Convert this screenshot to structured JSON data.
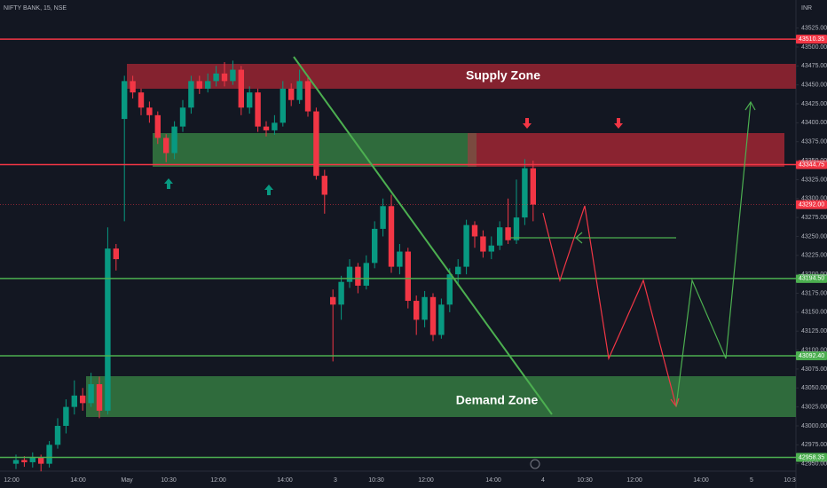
{
  "chart_data": {
    "type": "candlestick",
    "title": "NIFTY BANK, 15, NSE",
    "currency": "INR",
    "supply_zone_label": "Supply Zone",
    "demand_zone_label": "Demand Zone",
    "up_color": "#089981",
    "down_color": "#f23645",
    "ylim": [
      42918,
      43562
    ],
    "yticks": [
      {
        "value": 42950,
        "label": "42950.00"
      },
      {
        "value": 42975,
        "label": "42975.00"
      },
      {
        "value": 43000,
        "label": "43000.00"
      },
      {
        "value": 43025,
        "label": "43025.00"
      },
      {
        "value": 43050,
        "label": "43050.00"
      },
      {
        "value": 43075,
        "label": "43075.00"
      },
      {
        "value": 43100,
        "label": "43100.00"
      },
      {
        "value": 43125,
        "label": "43125.00"
      },
      {
        "value": 43150,
        "label": "43150.00"
      },
      {
        "value": 43175,
        "label": "43175.00"
      },
      {
        "value": 43200,
        "label": "43200.00"
      },
      {
        "value": 43225,
        "label": "43225.00"
      },
      {
        "value": 43250,
        "label": "43250.00"
      },
      {
        "value": 43275,
        "label": "43275.00"
      },
      {
        "value": 43300,
        "label": "43300.00"
      },
      {
        "value": 43325,
        "label": "43325.00"
      },
      {
        "value": 43350,
        "label": "43350.00"
      },
      {
        "value": 43375,
        "label": "43375.00"
      },
      {
        "value": 43400,
        "label": "43400.00"
      },
      {
        "value": 43425,
        "label": "43425.00"
      },
      {
        "value": 43450,
        "label": "43450.00"
      },
      {
        "value": 43475,
        "label": "43475.00"
      },
      {
        "value": 43500,
        "label": "43500.00"
      },
      {
        "value": 43525,
        "label": "43525.00"
      }
    ],
    "levels": [
      {
        "value": 43510.35,
        "label": "43510.35",
        "color": "#f23645"
      },
      {
        "value": 43344.75,
        "label": "43344.75",
        "color": "#f23645"
      },
      {
        "value": 43292,
        "label": "43292.00",
        "color": "#f23645"
      },
      {
        "value": 43194.5,
        "label": "43194.50",
        "color": "#4caf50"
      },
      {
        "value": 43092.4,
        "label": "43092.40",
        "color": "#4caf50"
      },
      {
        "value": 42958.35,
        "label": "42958.35",
        "color": "#4caf50"
      }
    ],
    "x_labels": [
      "12:00",
      "14:00",
      "May",
      "10:30",
      "12:00",
      "14:00",
      "3",
      "10:30",
      "12:00",
      "14:00",
      "4",
      "10:30",
      "12:00",
      "14:00",
      "5",
      "10:3"
    ],
    "open": [
      42950,
      42955,
      42952,
      42958,
      42950,
      42975,
      43000,
      43025,
      43040,
      43030,
      43055,
      43020,
      43234,
      43405,
      43455,
      43440,
      43420,
      43410,
      43380,
      43360,
      43395,
      43420,
      43455,
      43445,
      43455,
      43465,
      43455,
      43470,
      43420,
      43440,
      43395,
      43390,
      43400,
      43445,
      43430,
      43455,
      43415,
      43330,
      43170,
      43160,
      43190,
      43210,
      43185,
      43215,
      43260,
      43290,
      43210,
      43230,
      43165,
      43140,
      43170,
      43120,
      43160,
      43200,
      43210,
      43265,
      43250,
      43230,
      43238,
      43262,
      43245,
      43275,
      43340
    ],
    "high": [
      42962,
      42960,
      42965,
      42962,
      42980,
      43010,
      43035,
      43060,
      43050,
      43070,
      43065,
      43262,
      43240,
      43462,
      43462,
      43445,
      43428,
      43415,
      43385,
      43402,
      43430,
      43462,
      43462,
      43465,
      43475,
      43480,
      43482,
      43475,
      43448,
      43445,
      43402,
      43410,
      43455,
      43452,
      43470,
      43460,
      43420,
      43338,
      43180,
      43198,
      43220,
      43215,
      43225,
      43270,
      43300,
      43305,
      43240,
      43235,
      43172,
      43178,
      43175,
      43168,
      43208,
      43220,
      43272,
      43270,
      43258,
      43250,
      43270,
      43300,
      43325,
      43352,
      43350
    ],
    "low": [
      42943,
      42946,
      42945,
      42940,
      42945,
      42970,
      42990,
      43015,
      43020,
      43025,
      43010,
      43015,
      43205,
      43270,
      43432,
      43410,
      43400,
      43372,
      43348,
      43352,
      43388,
      43412,
      43438,
      43440,
      43448,
      43448,
      43450,
      43410,
      43412,
      43388,
      43382,
      43384,
      43395,
      43422,
      43425,
      43408,
      43325,
      43280,
      43085,
      43140,
      43182,
      43175,
      43180,
      43208,
      43250,
      43202,
      43200,
      43155,
      43120,
      43130,
      43112,
      43115,
      43150,
      43185,
      43200,
      43235,
      43222,
      43220,
      43232,
      43240,
      43240,
      43265,
      43270
    ],
    "close": [
      42955,
      42952,
      42958,
      42950,
      42975,
      43000,
      43025,
      43040,
      43030,
      43055,
      43020,
      43234,
      43220,
      43455,
      43440,
      43420,
      43410,
      43380,
      43360,
      43395,
      43420,
      43455,
      43445,
      43455,
      43465,
      43455,
      43470,
      43420,
      43440,
      43395,
      43390,
      43400,
      43445,
      43430,
      43455,
      43415,
      43330,
      43305,
      43160,
      43190,
      43210,
      43185,
      43215,
      43260,
      43290,
      43210,
      43230,
      43165,
      43140,
      43170,
      43120,
      43160,
      43200,
      43210,
      43265,
      43250,
      43230,
      43238,
      43262,
      43245,
      43275,
      43340,
      43292
    ]
  }
}
